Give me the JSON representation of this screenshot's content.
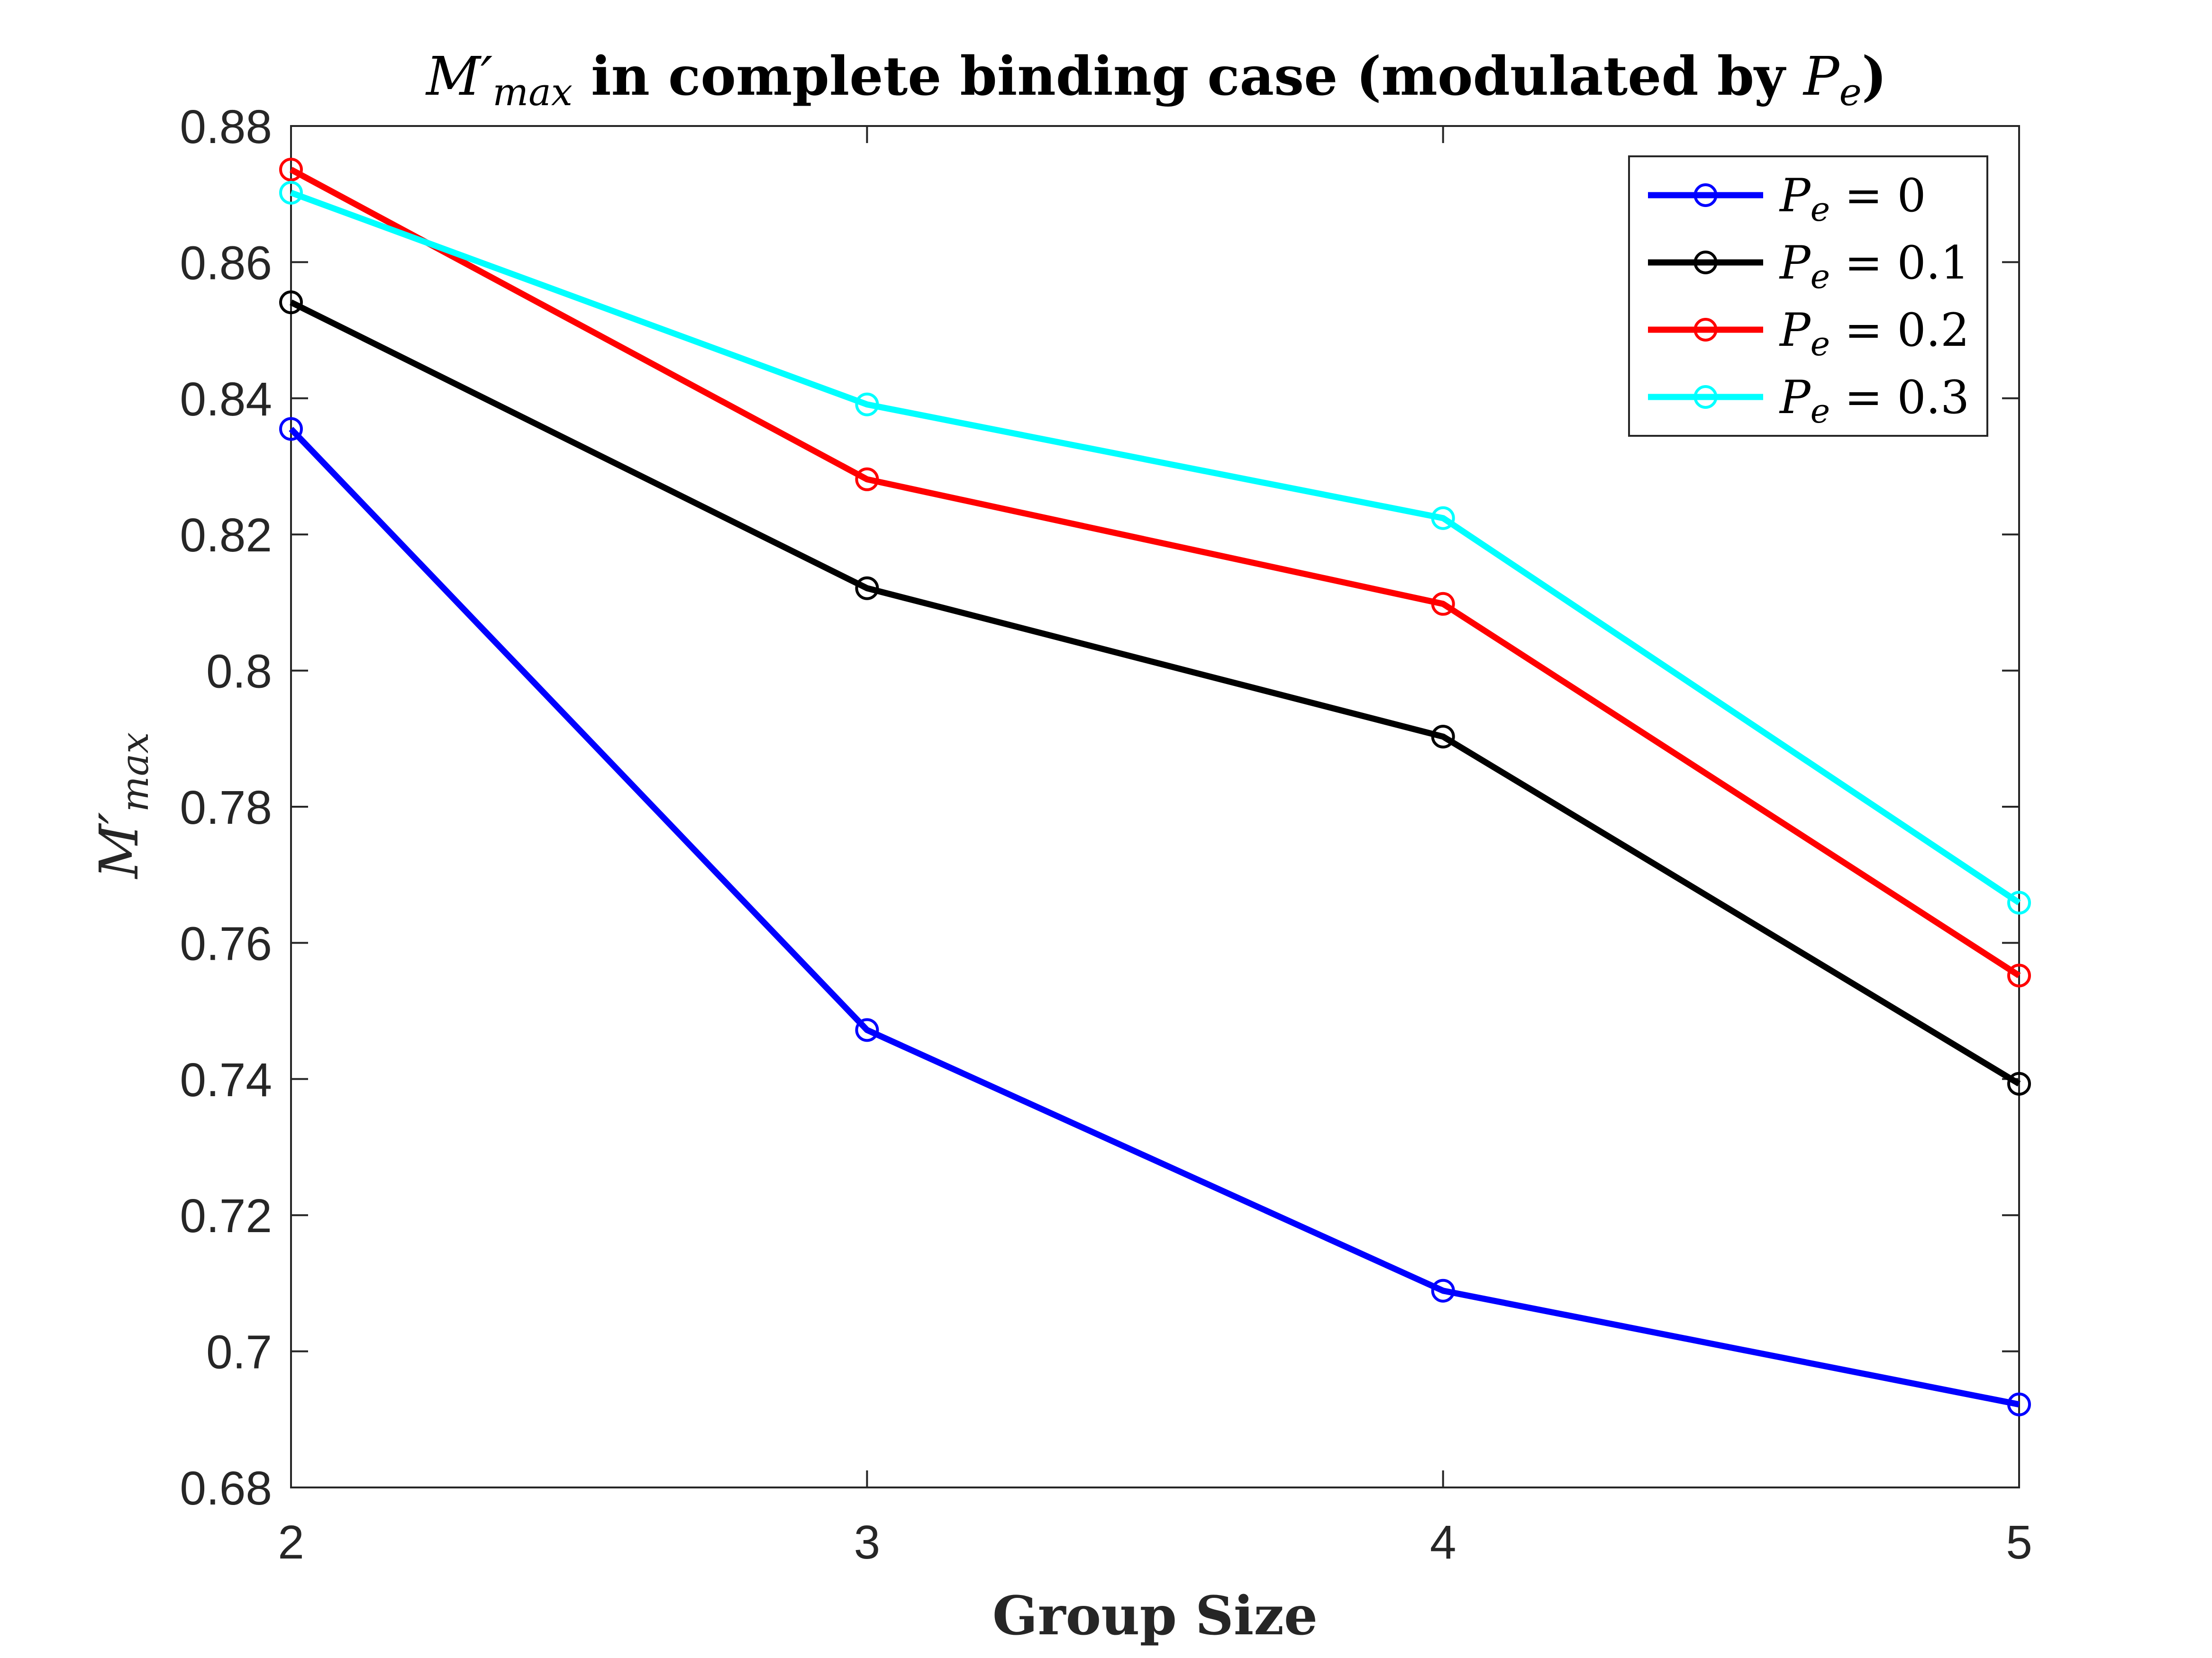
{
  "chart_data": {
    "type": "line",
    "title": {
      "symbol": "M′",
      "symbol_sub": "max",
      "text": " in complete binding case (modulated by ",
      "param": "P",
      "param_sub": "e",
      "close": ")"
    },
    "xlabel": "Group Size",
    "ylabel": {
      "symbol": "M′",
      "sub": "max"
    },
    "x": [
      2,
      3,
      4,
      5
    ],
    "xlim": [
      2,
      5
    ],
    "ylim": [
      0.68,
      0.88
    ],
    "xticks": [
      "2",
      "3",
      "4",
      "5"
    ],
    "yticks": [
      "0.68",
      "0.7",
      "0.72",
      "0.74",
      "0.76",
      "0.78",
      "0.8",
      "0.82",
      "0.84",
      "0.86",
      "0.88"
    ],
    "legend_position": "top-right",
    "series": [
      {
        "name": "Pe = 0",
        "legend_var": "P",
        "legend_sub": "e",
        "legend_value": " = 0",
        "color": "#0000ff",
        "values": [
          0.8355,
          0.7472,
          0.7089,
          0.6922
        ]
      },
      {
        "name": "Pe = 0.1",
        "legend_var": "P",
        "legend_sub": "e",
        "legend_value": " = 0.1",
        "color": "#000000",
        "values": [
          0.8541,
          0.8121,
          0.7903,
          0.7393
        ]
      },
      {
        "name": "Pe = 0.2",
        "legend_var": "P",
        "legend_sub": "e",
        "legend_value": " = 0.2",
        "color": "#ff0000",
        "values": [
          0.8736,
          0.8281,
          0.8098,
          0.7552
        ]
      },
      {
        "name": "Pe = 0.3",
        "legend_var": "P",
        "legend_sub": "e",
        "legend_value": " = 0.3",
        "color": "#00ffff",
        "values": [
          0.8702,
          0.8391,
          0.8224,
          0.7659
        ]
      }
    ]
  }
}
